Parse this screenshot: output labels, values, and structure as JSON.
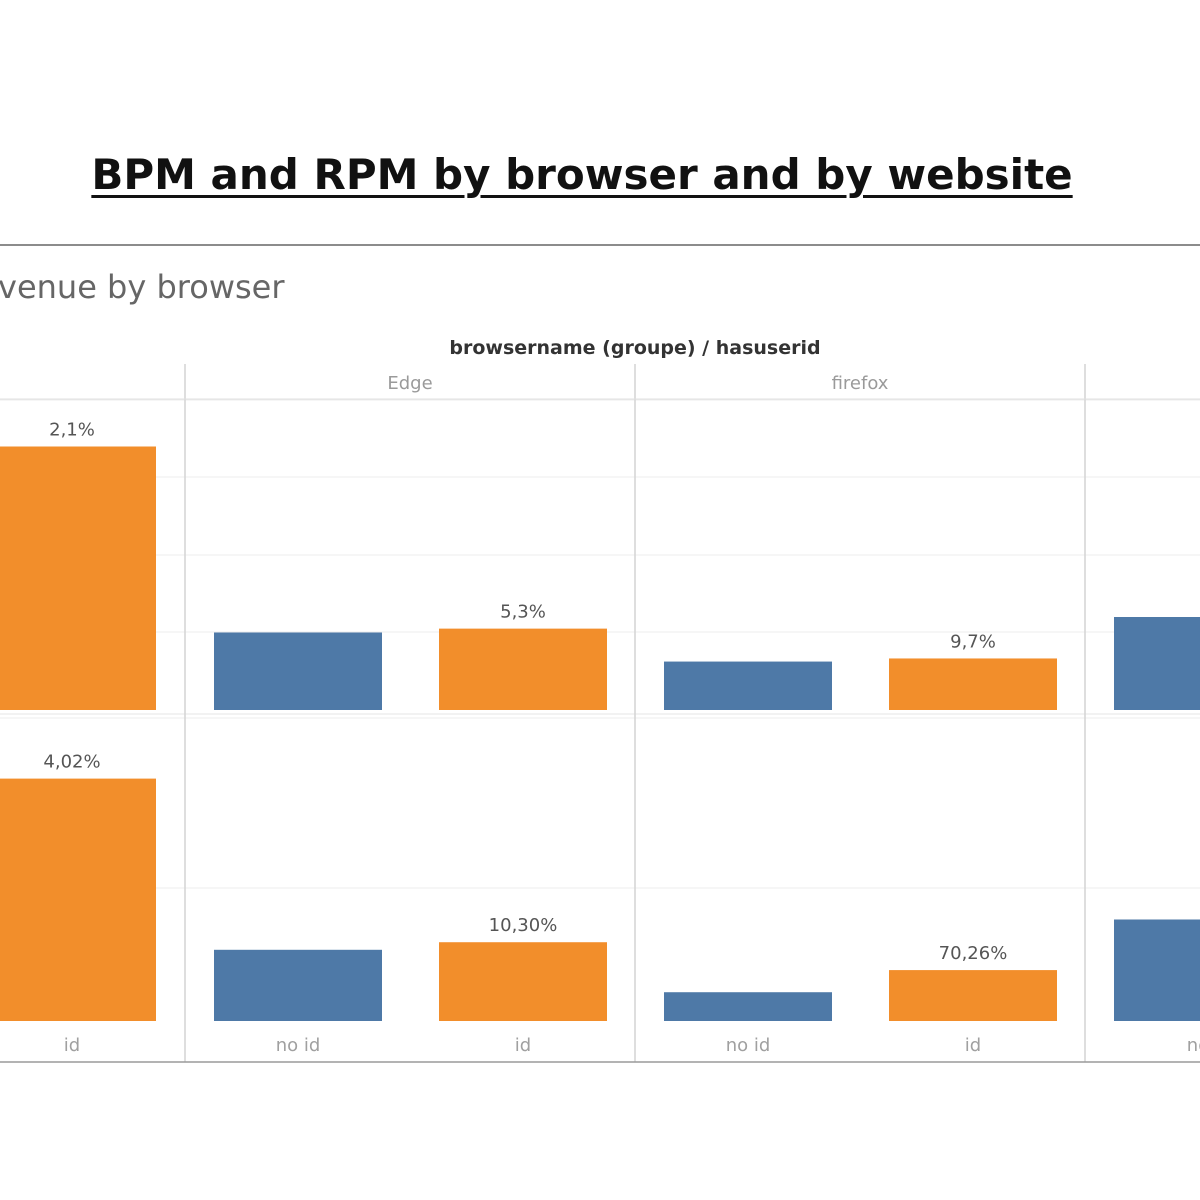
{
  "slide": {
    "title": "BPM and RPM by browser and by website"
  },
  "dashboard": {
    "sheet_title": "venue by browser",
    "header_title": "browsername (groupe)  /  hasuserid"
  },
  "colors": {
    "no_id": "#4e79a7",
    "id": "#f28e2b"
  },
  "chart_data": {
    "type": "bar",
    "browsers": [
      "",
      "Edge",
      "firefox",
      ""
    ],
    "x_labels": [
      "id",
      "no id",
      "id",
      "no id",
      "id",
      "no"
    ],
    "categories": [
      "id",
      "no id",
      "id",
      "no id",
      "id",
      "no id"
    ],
    "rows": [
      {
        "values": [
          0.068,
          0.02,
          0.021,
          0.0125,
          0.0133,
          0.024
        ],
        "labels": [
          "2,1%",
          "",
          "5,3%",
          "",
          "9,7%",
          ""
        ],
        "ylim": [
          0,
          0.08
        ]
      },
      {
        "values": [
          0.08,
          0.0235,
          0.026,
          0.0095,
          0.0168,
          0.0335
        ],
        "labels": [
          "4,02%",
          "",
          "10,30%",
          "",
          "70,26%",
          ""
        ],
        "ylim": [
          0,
          0.1
        ]
      }
    ],
    "grid": true,
    "legend": "none"
  }
}
